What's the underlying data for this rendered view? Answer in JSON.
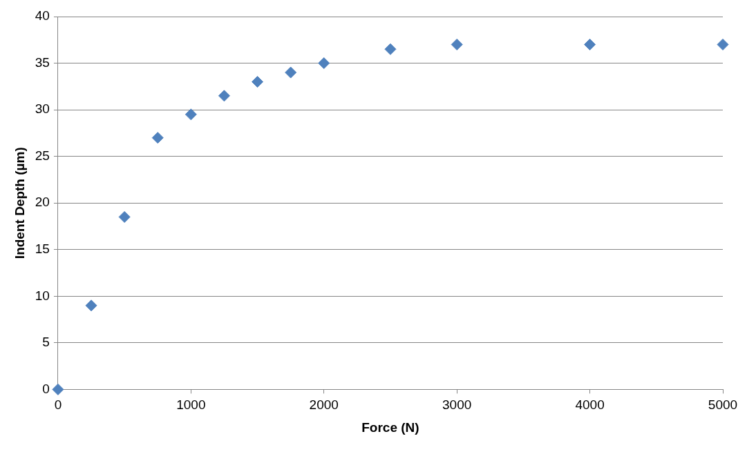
{
  "chart_data": {
    "type": "scatter",
    "xlabel": "Force (N)",
    "ylabel": "Indent Depth (µm)",
    "x": [
      0,
      250,
      500,
      750,
      1000,
      1250,
      1500,
      1750,
      2000,
      2500,
      3000,
      4000,
      5000
    ],
    "series": [
      {
        "color": "#4f81bd",
        "values": [
          0,
          9,
          18.5,
          27,
          29.5,
          31.5,
          33,
          34,
          35,
          36.5,
          37,
          37,
          37
        ]
      }
    ],
    "xlim": [
      0,
      5000
    ],
    "xticks": [
      0,
      1000,
      2000,
      3000,
      4000,
      5000
    ],
    "ylim": [
      0,
      40
    ],
    "yticks": [
      0,
      5,
      10,
      15,
      20,
      25,
      30,
      35,
      40
    ],
    "grid": "y",
    "legend": false,
    "marker": "diamond"
  }
}
